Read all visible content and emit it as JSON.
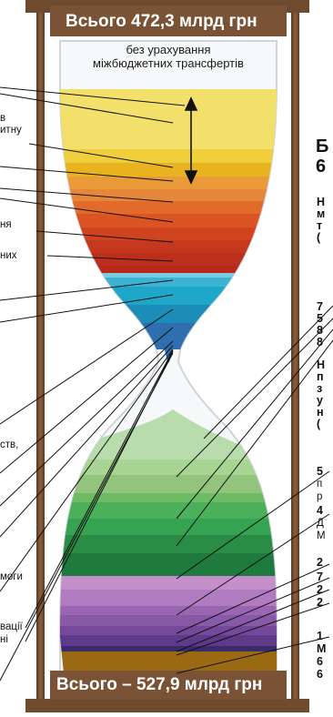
{
  "top_total": "Всього 472,3 млрд грн",
  "top_subtitle_line1": "без урахування",
  "top_subtitle_line2": "міжбюджетних трансфертів",
  "bottom_total": "Всього – 527,9 млрд грн",
  "left_fragments": [
    "в",
    "итну",
    "ня",
    "них",
    "ств,",
    "моги",
    "вації",
    "ні"
  ],
  "right_fragments": {
    "big": [
      "Б",
      "6"
    ],
    "bold_lines": [
      "Н",
      "м",
      "т",
      "(",
      "7",
      "5",
      "8",
      "8",
      "Н",
      "п",
      "з",
      "у",
      "н",
      "(",
      "5",
      "4",
      "2",
      "7",
      "2",
      "2",
      "1",
      "М",
      "6",
      "6"
    ],
    "regular_lines": [
      "п",
      "р",
      "Д",
      "М"
    ]
  },
  "colors": {
    "frame_wood": "#6e4a2f",
    "banner_bg": "#7a5337",
    "top_yellow": "#f2e06a",
    "top_gold": "#e8b31e",
    "top_orange": "#e26a2a",
    "top_red": "#c0321e",
    "top_cyan": "#1ea7c8",
    "bottom_green_light": "#9acb85",
    "bottom_green": "#3ba85a",
    "bottom_green_dark": "#1f7a3e",
    "bottom_violet": "#b07bc0",
    "bottom_purple": "#7a4f9c",
    "bottom_brown": "#9a6a12"
  },
  "icons": [
    "double-arrow-icon"
  ]
}
